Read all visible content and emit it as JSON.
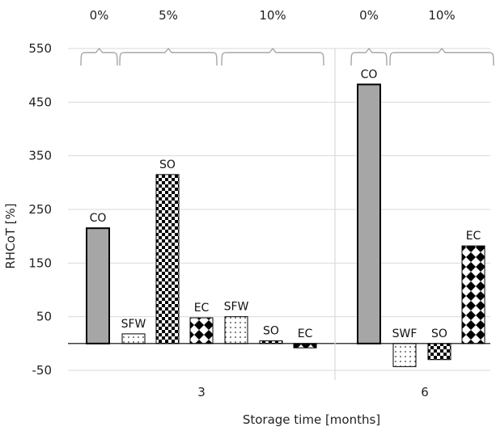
{
  "chart_data": {
    "type": "bar",
    "title": "",
    "xlabel": "Storage time [months]",
    "ylabel": "RHCoT [%]",
    "ylim": [
      -50,
      550
    ],
    "yticks": [
      "550",
      "450",
      "350",
      "250",
      "150",
      "50",
      "-50"
    ],
    "grid": true,
    "groups": [
      {
        "name": "3",
        "percent_labels": [
          "0%",
          "5%",
          "10%"
        ],
        "bars": [
          {
            "label": "CO",
            "value": 215,
            "pattern": "solid-gray"
          },
          {
            "label": "SFW",
            "value": 18,
            "pattern": "dots"
          },
          {
            "label": "SO",
            "value": 315,
            "pattern": "checker"
          },
          {
            "label": "EC",
            "value": 48,
            "pattern": "diamonds"
          },
          {
            "label": "SFW",
            "value": 50,
            "pattern": "dots"
          },
          {
            "label": "SO",
            "value": 5,
            "pattern": "checker"
          },
          {
            "label": "EC",
            "value": -8,
            "pattern": "diamonds"
          }
        ]
      },
      {
        "name": "6",
        "percent_labels": [
          "0%",
          "10%"
        ],
        "bars": [
          {
            "label": "CO",
            "value": 483,
            "pattern": "solid-gray"
          },
          {
            "label": "SWF",
            "value": -43,
            "pattern": "dots"
          },
          {
            "label": "SO",
            "value": -30,
            "pattern": "checker"
          },
          {
            "label": "EC",
            "value": 182,
            "pattern": "diamonds"
          }
        ]
      }
    ],
    "colors": {
      "solid": "#a6a6a6",
      "grid": "#d9d9d9",
      "bracket": "#a6a6a6"
    }
  }
}
